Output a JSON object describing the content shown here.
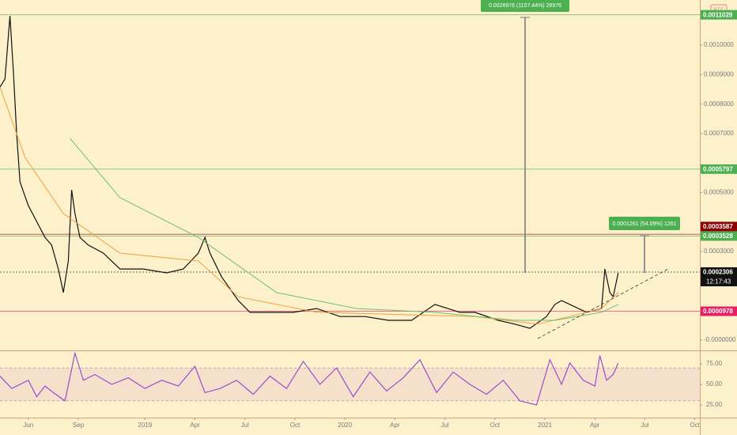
{
  "symbol": "BTC",
  "chart_data": [
    {
      "type": "line",
      "xlim": [
        -1.7,
        40.3
      ],
      "ylim": [
        -3.49e-05,
        0.001153
      ],
      "yticks": [
        {
          "value": 0.001,
          "label": "0.0010000"
        },
        {
          "value": 0.0009,
          "label": "0.0009000"
        },
        {
          "value": 0.0008,
          "label": "0.0008000"
        },
        {
          "value": 0.0007,
          "label": "0.0007000"
        },
        {
          "value": 0.0005,
          "label": "0.0005000"
        },
        {
          "value": 0.0003,
          "label": "0.0003000"
        },
        {
          "value": 0,
          "label": "-0.0000000"
        }
      ],
      "series": [
        {
          "color": "#111111",
          "x": [
            -1.7,
            -1.4,
            -1.1,
            -0.9,
            -0.7,
            -0.5,
            0,
            0.5,
            1.0,
            1.4,
            1.8,
            2.1,
            2.4,
            2.6,
            2.8,
            3.1,
            3.6,
            4.5,
            5.5,
            6.9,
            8.3,
            9.3,
            10.2,
            10.6,
            10.9,
            11.6,
            12.6,
            13.3,
            14.5,
            15.9,
            17.3,
            18.7,
            20.2,
            21.6,
            23.0,
            24.4,
            25.9,
            26.8,
            28.2,
            29.2,
            30.1,
            31.1,
            31.6,
            32.0,
            32.5,
            33.5,
            34.4,
            34.6,
            34.9,
            35.1,
            35.4
          ],
          "values": [
            0.000858,
            0.000885,
            0.001099,
            0.000912,
            0.000697,
            0.000536,
            0.000456,
            0.000402,
            0.000348,
            0.000322,
            0.000241,
            0.000161,
            0.000268,
            0.000509,
            0.000429,
            0.000348,
            0.000322,
            0.000295,
            0.000241,
            0.000241,
            0.000228,
            0.000241,
            0.000295,
            0.000348,
            0.000295,
            0.000214,
            0.000134,
            9.4e-05,
            9.4e-05,
            9.4e-05,
            0.000107,
            8e-05,
            8e-05,
            6.7e-05,
            6.7e-05,
            0.000121,
            9.4e-05,
            9.4e-05,
            6.7e-05,
            5.4e-05,
            4e-05,
            8e-05,
            0.000121,
            0.000134,
            0.000121,
            9.4e-05,
            0.000107,
            0.000241,
            0.000161,
            0.000147,
            0.000228
          ]
        },
        {
          "color": "#f0a040",
          "x": [
            -1.7,
            -0.2,
            2.1,
            5.5,
            10.2,
            12.6,
            17.3,
            26.8,
            30.6,
            34.4,
            35.4
          ],
          "values": [
            0.000858,
            0.00062,
            0.000429,
            0.000295,
            0.000268,
            0.000147,
            9.4e-05,
            8e-05,
            5.4e-05,
            0.000107,
            0.000161
          ]
        },
        {
          "color": "#6dbf7a",
          "x": [
            2.5,
            5.5,
            10.2,
            14.9,
            19.7,
            24.4,
            29.2,
            31.6,
            34.4,
            35.4
          ],
          "values": [
            0.000684,
            0.000483,
            0.000348,
            0.000161,
            0.000107,
            9.4e-05,
            6.7e-05,
            6.7e-05,
            9.4e-05,
            0.000121
          ]
        }
      ],
      "levels": [
        {
          "value": 0.0011029,
          "color": "#4caf50"
        },
        {
          "value": 0.0005797,
          "color": "#4caf50"
        },
        {
          "value": 0.0003528,
          "color": "#4caf50"
        },
        {
          "value": 0.0003587,
          "color": "#8b0000"
        },
        {
          "value": 9.78e-05,
          "color": "#e91e63"
        },
        {
          "value": 0.0002306,
          "color": "#111111",
          "countdown": "12:17:43"
        }
      ],
      "annotations": [
        "0.0026976 (1157.44%) 26976",
        "0.0001261 (54.09%) 1261"
      ]
    },
    {
      "type": "line",
      "xlim": [
        -1.7,
        40.3
      ],
      "ylim": [
        9.6,
        90.4
      ],
      "yticks": [
        {
          "value": 75,
          "label": "75.00"
        },
        {
          "value": 50,
          "label": "50.00"
        },
        {
          "value": 25,
          "label": "25.00"
        }
      ],
      "band": [
        30,
        70
      ],
      "xticks": [
        {
          "value": 0,
          "label": "Jun"
        },
        {
          "value": 3,
          "label": "Sep"
        },
        {
          "value": 7,
          "label": "2019"
        },
        {
          "value": 10,
          "label": "Apr"
        },
        {
          "value": 13,
          "label": "Jul"
        },
        {
          "value": 16,
          "label": "Oct"
        },
        {
          "value": 19,
          "label": "2020"
        },
        {
          "value": 22,
          "label": "Apr"
        },
        {
          "value": 25,
          "label": "Jul"
        },
        {
          "value": 28,
          "label": "Oct"
        },
        {
          "value": 31,
          "label": "2021"
        },
        {
          "value": 34,
          "label": "Apr"
        },
        {
          "value": 37,
          "label": "Jul"
        },
        {
          "value": 40,
          "label": "Oct"
        }
      ],
      "series": [
        {
          "color": "#9c4dcc",
          "x": [
            -1.7,
            -1,
            0,
            0.5,
            1,
            1.5,
            2.2,
            2.8,
            3.3,
            4,
            5,
            6,
            7,
            8,
            9,
            10,
            10.6,
            11.5,
            12.5,
            13.5,
            14.5,
            15.5,
            16.5,
            17.5,
            18.5,
            19.5,
            20.5,
            21.5,
            22.5,
            23.5,
            24.5,
            25.5,
            26.5,
            27.5,
            28.5,
            29.5,
            30.5,
            31.3,
            32,
            32.5,
            33.3,
            34,
            34.3,
            34.7,
            35.1,
            35.4
          ],
          "values": [
            60,
            45,
            55,
            35,
            48,
            40,
            30,
            88,
            55,
            62,
            50,
            58,
            45,
            55,
            48,
            72,
            40,
            45,
            55,
            38,
            60,
            45,
            78,
            50,
            70,
            35,
            65,
            42,
            58,
            80,
            40,
            65,
            50,
            38,
            55,
            30,
            25,
            80,
            50,
            76,
            55,
            48,
            85,
            55,
            62,
            76
          ]
        }
      ]
    }
  ]
}
